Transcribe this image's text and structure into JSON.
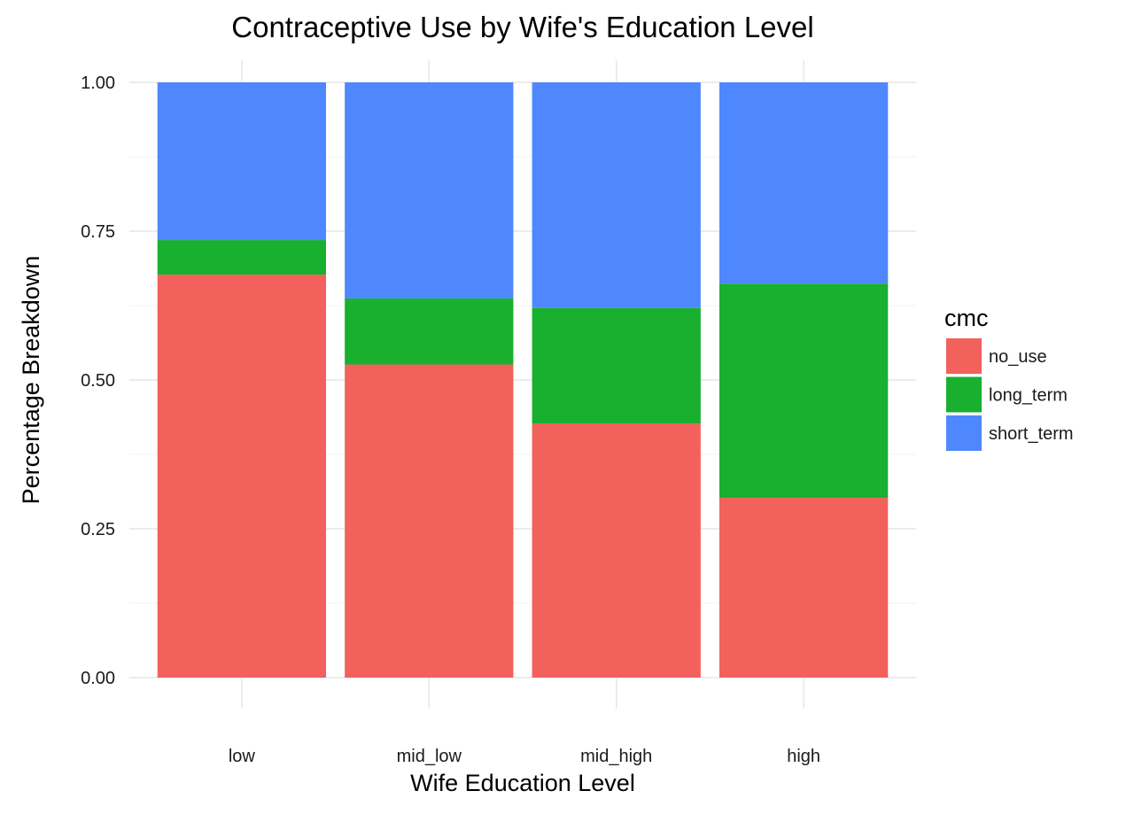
{
  "chart_data": {
    "type": "bar",
    "stacked": true,
    "title": "Contraceptive Use by Wife's Education Level",
    "xlabel": "Wife Education Level",
    "ylabel": "Percentage Breakdown",
    "categories": [
      "low",
      "mid_low",
      "mid_high",
      "high"
    ],
    "ylim": [
      0,
      1
    ],
    "yticks": [
      0,
      0.25,
      0.5,
      0.75,
      1.0
    ],
    "ytick_labels": [
      "0.00",
      "0.25",
      "0.50",
      "0.75",
      "1.00"
    ],
    "grid": true,
    "legend": {
      "title": "cmc",
      "position": "right"
    },
    "series": [
      {
        "name": "no_use",
        "color": "#F2615C",
        "values": [
          0.677,
          0.526,
          0.427,
          0.302
        ]
      },
      {
        "name": "long_term",
        "color": "#18B02E",
        "values": [
          0.058,
          0.111,
          0.194,
          0.36
        ]
      },
      {
        "name": "short_term",
        "color": "#4F88FE",
        "values": [
          0.265,
          0.363,
          0.379,
          0.338
        ]
      }
    ]
  }
}
